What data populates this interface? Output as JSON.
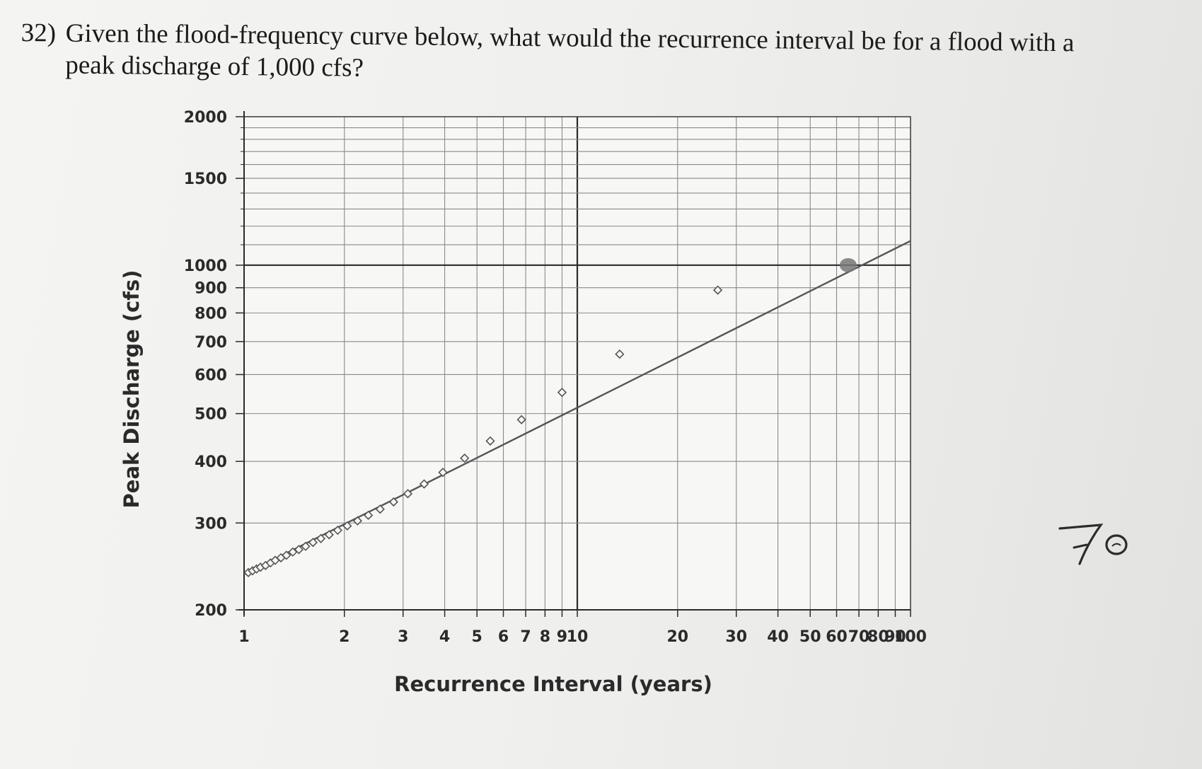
{
  "question": {
    "number": "32)",
    "text": "Given the flood-frequency curve below, what would the recurrence interval be for a flood with a peak discharge of 1,000 cfs?"
  },
  "handwritten_answer": "70",
  "chart_data": {
    "type": "line",
    "xlabel": "Recurrence Interval (years)",
    "ylabel": "Peak Discharge (cfs)",
    "x_scale": "log",
    "y_scale": "log",
    "xlim": [
      1,
      100
    ],
    "ylim": [
      200,
      2000
    ],
    "x_tick_labels": [
      {
        "value": 1,
        "label": "1"
      },
      {
        "value": 2,
        "label": "2"
      },
      {
        "value": 3,
        "label": "3"
      },
      {
        "value": 4,
        "label": "4"
      },
      {
        "value": 5,
        "label": "5"
      },
      {
        "value": 6,
        "label": "6"
      },
      {
        "value": 7,
        "label": "7"
      },
      {
        "value": 8,
        "label": "8"
      },
      {
        "value": 9,
        "label": "9"
      },
      {
        "value": 10,
        "label": "10"
      },
      {
        "value": 20,
        "label": "20"
      },
      {
        "value": 30,
        "label": "30"
      },
      {
        "value": 40,
        "label": "40"
      },
      {
        "value": 50,
        "label": "50"
      },
      {
        "value": 60,
        "label": "60"
      },
      {
        "value": 70,
        "label": "70"
      },
      {
        "value": 80,
        "label": "80"
      },
      {
        "value": 90,
        "label": "90"
      },
      {
        "value": 100,
        "label": "100"
      }
    ],
    "y_tick_labels": [
      {
        "value": 200,
        "label": "200"
      },
      {
        "value": 300,
        "label": "300"
      },
      {
        "value": 400,
        "label": "400"
      },
      {
        "value": 500,
        "label": "500"
      },
      {
        "value": 600,
        "label": "600"
      },
      {
        "value": 700,
        "label": "700"
      },
      {
        "value": 800,
        "label": "800"
      },
      {
        "value": 900,
        "label": "900"
      },
      {
        "value": 1000,
        "label": "1000"
      },
      {
        "value": 1500,
        "label": "1500"
      },
      {
        "value": 2000,
        "label": "2000"
      }
    ],
    "grid": true,
    "fit_line": {
      "x": [
        1,
        100
      ],
      "y": [
        236,
        1120
      ]
    },
    "points": [
      {
        "x": 1.03,
        "y": 238
      },
      {
        "x": 1.06,
        "y": 240
      },
      {
        "x": 1.09,
        "y": 242
      },
      {
        "x": 1.12,
        "y": 244
      },
      {
        "x": 1.16,
        "y": 246
      },
      {
        "x": 1.2,
        "y": 249
      },
      {
        "x": 1.24,
        "y": 252
      },
      {
        "x": 1.29,
        "y": 255
      },
      {
        "x": 1.34,
        "y": 258
      },
      {
        "x": 1.4,
        "y": 262
      },
      {
        "x": 1.46,
        "y": 265
      },
      {
        "x": 1.53,
        "y": 269
      },
      {
        "x": 1.61,
        "y": 274
      },
      {
        "x": 1.7,
        "y": 279
      },
      {
        "x": 1.8,
        "y": 284
      },
      {
        "x": 1.91,
        "y": 290
      },
      {
        "x": 2.04,
        "y": 296
      },
      {
        "x": 2.19,
        "y": 303
      },
      {
        "x": 2.36,
        "y": 311
      },
      {
        "x": 2.56,
        "y": 320
      },
      {
        "x": 2.81,
        "y": 331
      },
      {
        "x": 3.1,
        "y": 344
      },
      {
        "x": 3.47,
        "y": 360
      },
      {
        "x": 3.95,
        "y": 380
      },
      {
        "x": 4.59,
        "y": 406
      },
      {
        "x": 5.48,
        "y": 440
      },
      {
        "x": 6.8,
        "y": 486
      },
      {
        "x": 9.0,
        "y": 552
      },
      {
        "x": 13.4,
        "y": 660
      },
      {
        "x": 26.4,
        "y": 890
      }
    ],
    "highlight_point": {
      "x": 65,
      "y": 1000
    },
    "reference_line_y": 1000,
    "colors": {
      "series": "#555555",
      "grid": "#8a8a8a",
      "major_grid": "#2a2a2a",
      "highlight": "#777777"
    }
  }
}
